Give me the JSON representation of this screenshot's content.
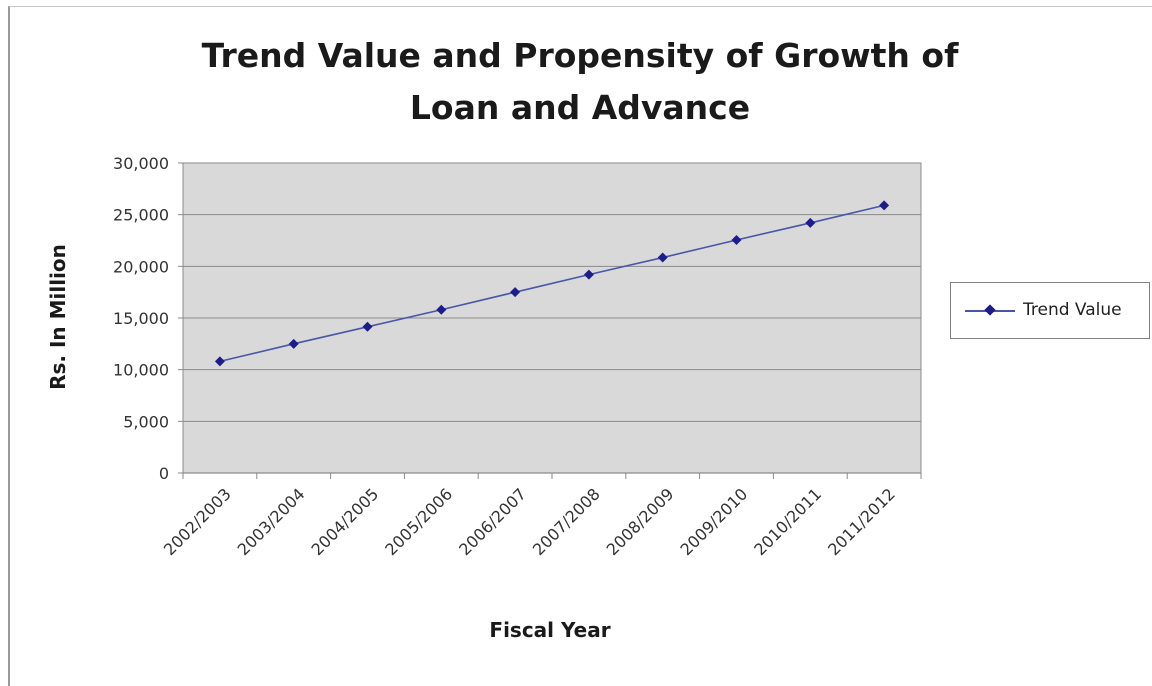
{
  "chart_data": {
    "type": "line",
    "title": "Trend Value and Propensity of Growth of Loan and Advance",
    "title_lines": [
      "Trend Value and Propensity of Growth of",
      "Loan and Advance"
    ],
    "xlabel": "Fiscal Year",
    "ylabel": "Rs. In Million",
    "categories": [
      "2002/2003",
      "2003/2004",
      "2004/2005",
      "2005/2006",
      "2006/2007",
      "2007/2008",
      "2008/2009",
      "2009/2010",
      "2010/2011",
      "2011/2012"
    ],
    "series": [
      {
        "name": "Trend Value",
        "values": [
          10800,
          12500,
          14150,
          15800,
          17500,
          19200,
          20850,
          22550,
          24200,
          25900
        ],
        "color": "#4a55a8",
        "marker_color": "#1c1c8c"
      }
    ],
    "ylim": [
      0,
      30000
    ],
    "yticks": [
      0,
      5000,
      10000,
      15000,
      20000,
      25000,
      30000
    ],
    "ytick_labels": [
      "0",
      "5,000",
      "10,000",
      "15,000",
      "20,000",
      "25,000",
      "30,000"
    ],
    "grid": true,
    "legend_position": "right",
    "plot_background": "#d9d9d9"
  }
}
